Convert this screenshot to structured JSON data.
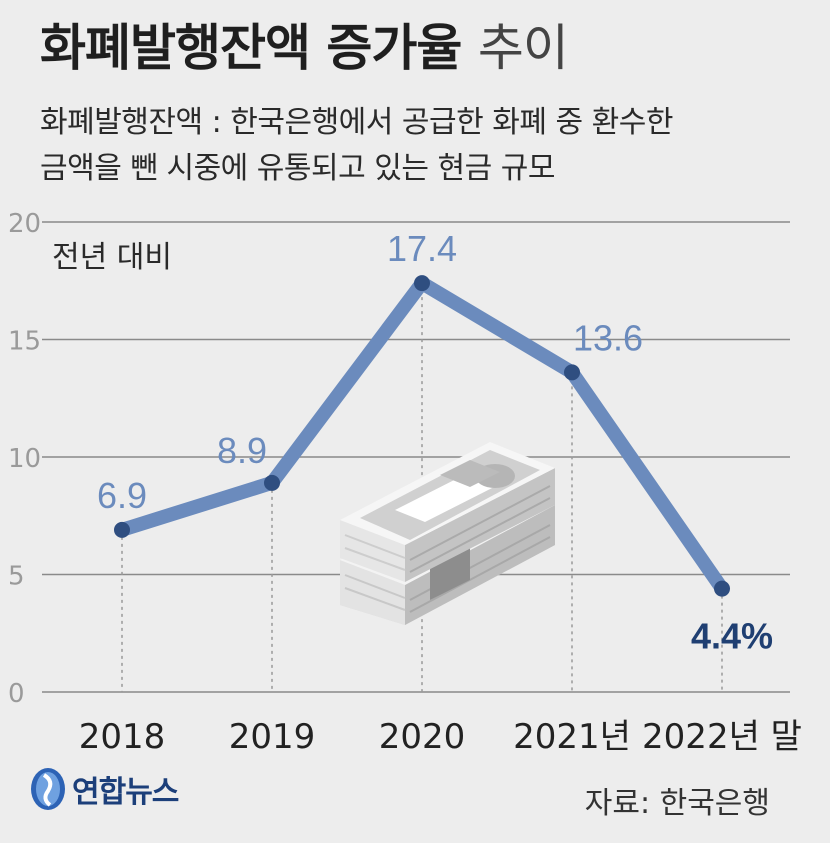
{
  "title": {
    "main": "화폐발행잔액 증가율",
    "light": "추이"
  },
  "subtitle": {
    "line1": "화폐발행잔액 : 한국은행에서 공급한 화폐 중 환수한",
    "line2": "금액을 뺀 시중에 유통되고 있는 현금 규모"
  },
  "unit_label": "전년 대비",
  "source": "자료: 한국은행",
  "logo": {
    "text": "연합뉴스",
    "icon": "yonhap-logo-icon"
  },
  "colors": {
    "line": "#6b8bbd",
    "highlight": "#1f3f72",
    "grid": "#8a8a8a",
    "label": "#6b8bbd",
    "background": "#ededed"
  },
  "chart_data": {
    "type": "line",
    "categories": [
      "2018",
      "2019",
      "2020",
      "2021년",
      "2022년 말"
    ],
    "series": [
      {
        "values": [
          6.9,
          8.9,
          17.4,
          13.6,
          4.4
        ]
      }
    ],
    "data_labels": [
      "6.9",
      "8.9",
      "17.4",
      "13.6",
      "4.4%"
    ],
    "yticks": [
      "0",
      "5",
      "10",
      "15",
      "20"
    ],
    "ylim": [
      0,
      20
    ],
    "grid": true,
    "ylabel": "전년 대비",
    "illustration": "money-stack-icon"
  }
}
